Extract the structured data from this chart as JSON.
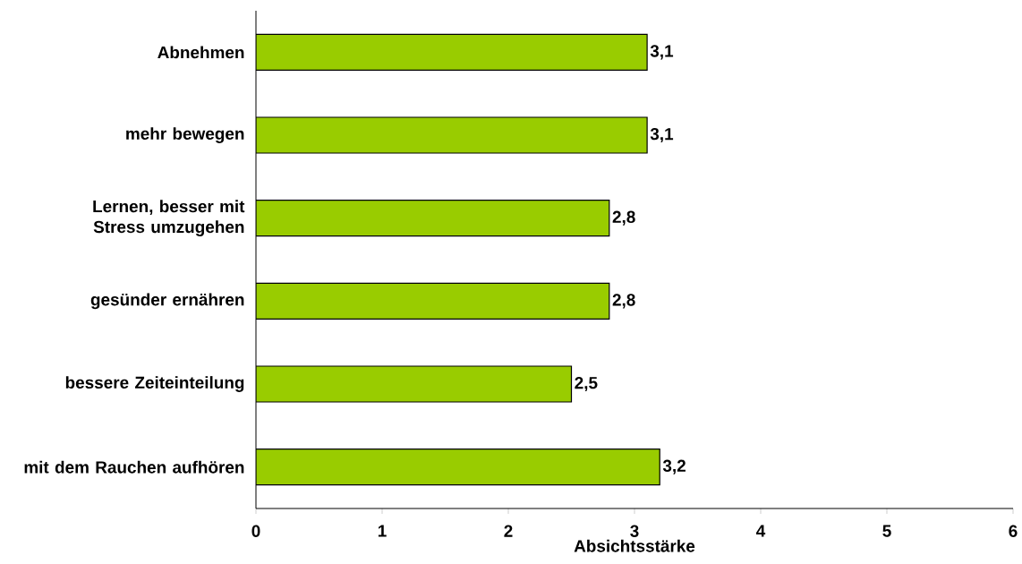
{
  "chart_data": {
    "type": "bar",
    "orientation": "horizontal",
    "xlabel": "Absichtsstärke",
    "categories": [
      "Abnehmen",
      "mehr bewegen",
      "Lernen, besser mit Stress umzugehen",
      "gesünder ernähren",
      "bessere Zeiteinteilung",
      "mit dem Rauchen aufhören"
    ],
    "values": [
      3.1,
      3.1,
      2.8,
      2.8,
      2.5,
      3.2
    ],
    "value_labels": [
      "3,1",
      "3,1",
      "2,8",
      "2,8",
      "2,5",
      "3,2"
    ],
    "color": "#99cc00",
    "xlim": [
      0,
      6
    ],
    "xticks": [
      0,
      1,
      2,
      3,
      4,
      5,
      6
    ],
    "grid": false
  }
}
